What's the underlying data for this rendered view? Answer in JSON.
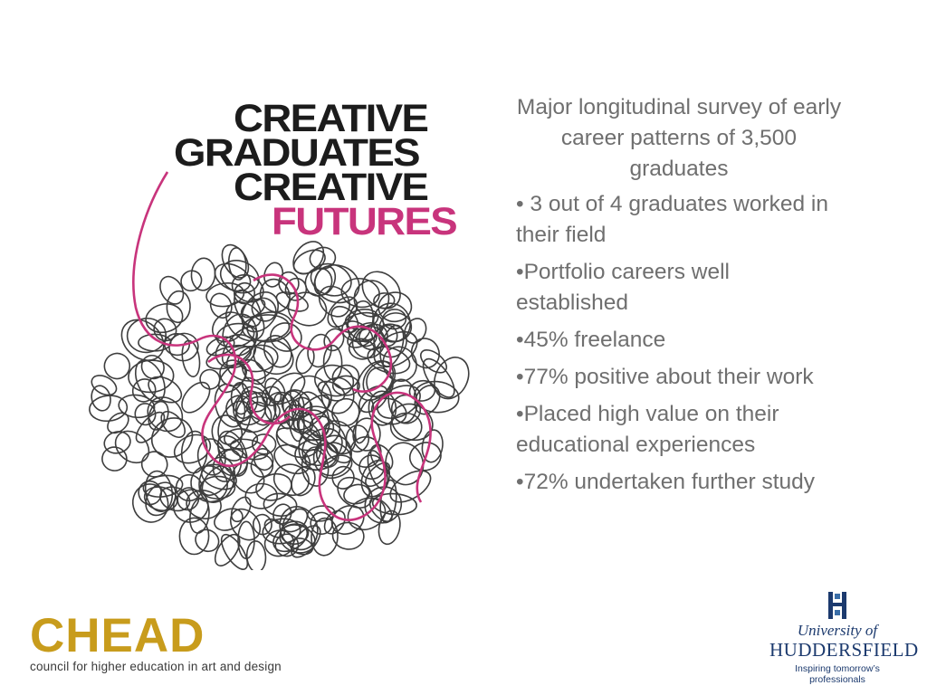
{
  "logo": {
    "lines": [
      "CREATIVE",
      "GRADUATES",
      "CREATIVE",
      "FUTURES"
    ],
    "accent_color": "#c8347c",
    "ink_color": "#1c1c1c"
  },
  "summary": {
    "intro": "Major longitudinal survey of early career patterns of 3,500 graduates",
    "bullets": [
      "• 3 out of 4 graduates worked in their field",
      "•Portfolio careers well established",
      "•45% freelance",
      "•77% positive about their work",
      "•Placed high value on their educational experiences",
      "•72% undertaken further study"
    ],
    "text_color": "#6f6f6f"
  },
  "footer": {
    "chead": {
      "name": "CHEAD",
      "tagline": "council for higher education in art and design",
      "color": "#c89c1c"
    },
    "huddersfield": {
      "university_of": "University of",
      "name": "HUDDERSFIELD",
      "tagline": "Inspiring tomorrow’s professionals",
      "color": "#1c3a6e",
      "crest_icon": "huddersfield-crest-icon"
    }
  }
}
